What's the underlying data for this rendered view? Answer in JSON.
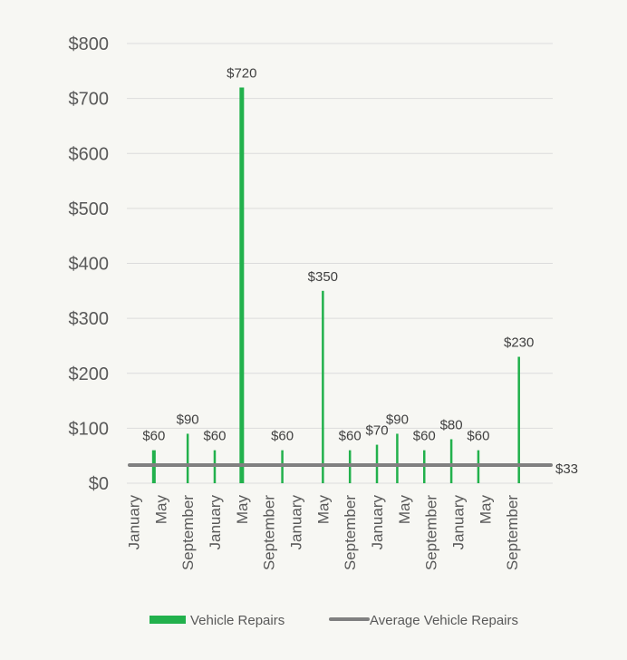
{
  "chart_data": {
    "type": "bar",
    "y_ticks": [
      "$0",
      "$100",
      "$200",
      "$300",
      "$400",
      "$500",
      "$600",
      "$700",
      "$800"
    ],
    "ylim": [
      0,
      800
    ],
    "grid": true,
    "legend_placement": "bottom",
    "x_ticks": [
      {
        "label": "January",
        "month": 1
      },
      {
        "label": "May",
        "month": 5
      },
      {
        "label": "September",
        "month": 9
      },
      {
        "label": "January",
        "month": 13
      },
      {
        "label": "May",
        "month": 17
      },
      {
        "label": "September",
        "month": 21
      },
      {
        "label": "January",
        "month": 25
      },
      {
        "label": "May",
        "month": 29
      },
      {
        "label": "September",
        "month": 33
      },
      {
        "label": "January",
        "month": 37
      },
      {
        "label": "May",
        "month": 41
      },
      {
        "label": "September",
        "month": 45
      },
      {
        "label": "January",
        "month": 49
      },
      {
        "label": "May",
        "month": 53
      },
      {
        "label": "September",
        "month": 57
      }
    ],
    "x_range": [
      0,
      63
    ],
    "series": [
      {
        "name": "Vehicle Repairs",
        "type": "bar",
        "color": "#22b14c",
        "points": [
          {
            "month": 4,
            "value": 60,
            "label": "$60"
          },
          {
            "month": 9,
            "value": 90,
            "label": "$90"
          },
          {
            "month": 13,
            "value": 60,
            "label": "$60"
          },
          {
            "month": 17,
            "value": 720,
            "label": "$720"
          },
          {
            "month": 23,
            "value": 60,
            "label": "$60"
          },
          {
            "month": 29,
            "value": 350,
            "label": "$350"
          },
          {
            "month": 33,
            "value": 60,
            "label": "$60"
          },
          {
            "month": 37,
            "value": 70,
            "label": "$70"
          },
          {
            "month": 40,
            "value": 90,
            "label": "$90"
          },
          {
            "month": 44,
            "value": 60,
            "label": "$60"
          },
          {
            "month": 48,
            "value": 80,
            "label": "$80"
          },
          {
            "month": 52,
            "value": 60,
            "label": "$60"
          },
          {
            "month": 58,
            "value": 230,
            "label": "$230"
          }
        ]
      },
      {
        "name": "Average Vehicle Repairs",
        "type": "line",
        "color": "#808080",
        "value": 33,
        "label": "$33"
      }
    ]
  }
}
